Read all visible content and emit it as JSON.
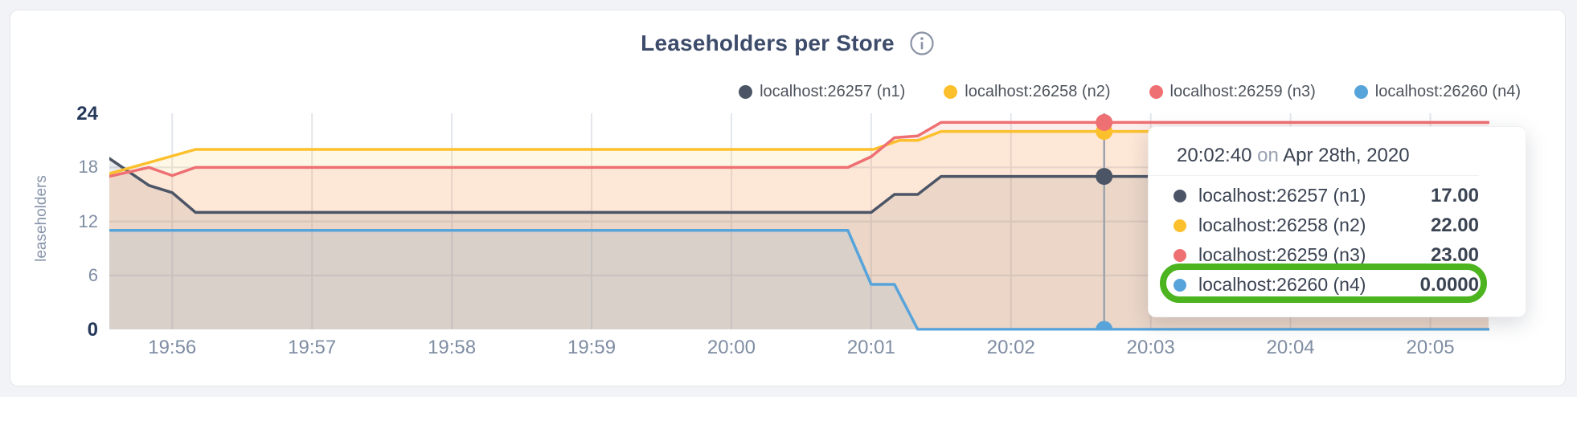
{
  "header": {
    "title": "Leaseholders per Store",
    "info_icon": "circle-i"
  },
  "legend": [
    {
      "label": "localhost:26257 (n1)",
      "color": "#4c5566"
    },
    {
      "label": "localhost:26258 (n2)",
      "color": "#fcc02d"
    },
    {
      "label": "localhost:26259 (n3)",
      "color": "#ef7072"
    },
    {
      "label": "localhost:26260 (n4)",
      "color": "#57a4db"
    }
  ],
  "chart_data": {
    "type": "area",
    "title": "Leaseholders per Store",
    "xlabel": "",
    "ylabel": "leaseholders",
    "ylim": [
      0,
      24
    ],
    "grid": true,
    "legend_position": "top-right",
    "yticks": [
      {
        "v": 0,
        "label": "0",
        "emph": true
      },
      {
        "v": 6,
        "label": "6",
        "emph": false
      },
      {
        "v": 12,
        "label": "12",
        "emph": false
      },
      {
        "v": 18,
        "label": "18",
        "emph": false
      },
      {
        "v": 24,
        "label": "24",
        "emph": true
      }
    ],
    "xticks": [
      {
        "t": -240,
        "label": "19:56"
      },
      {
        "t": -180,
        "label": "19:57"
      },
      {
        "t": -120,
        "label": "19:58"
      },
      {
        "t": -60,
        "label": "19:59"
      },
      {
        "t": 0,
        "label": "20:00"
      },
      {
        "t": 60,
        "label": "20:01"
      },
      {
        "t": 120,
        "label": "20:02"
      },
      {
        "t": 180,
        "label": "20:03"
      },
      {
        "t": 240,
        "label": "20:04"
      },
      {
        "t": 300,
        "label": "20:05"
      }
    ],
    "time_reference": "20:00:00 on Apr 28th, 2020 (t = seconds relative)",
    "x_domain": [
      -267,
      325
    ],
    "series": [
      {
        "name": "localhost:26257 (n1)",
        "color": "#4c5566",
        "points": [
          [
            -267,
            19
          ],
          [
            -250,
            16
          ],
          [
            -240,
            15.2
          ],
          [
            -230,
            13
          ],
          [
            60,
            13
          ],
          [
            70,
            15
          ],
          [
            80,
            15
          ],
          [
            90,
            17
          ],
          [
            325,
            17
          ]
        ]
      },
      {
        "name": "localhost:26258 (n2)",
        "color": "#fcc02d",
        "points": [
          [
            -267,
            17.3
          ],
          [
            -230,
            20
          ],
          [
            61,
            20
          ],
          [
            72,
            21
          ],
          [
            80,
            21
          ],
          [
            90,
            22
          ],
          [
            325,
            22
          ]
        ]
      },
      {
        "name": "localhost:26259 (n3)",
        "color": "#ef7072",
        "points": [
          [
            -267,
            17
          ],
          [
            -250,
            18
          ],
          [
            -240,
            17.1
          ],
          [
            -230,
            18
          ],
          [
            50,
            18
          ],
          [
            60,
            19.2
          ],
          [
            70,
            21.3
          ],
          [
            80,
            21.5
          ],
          [
            90,
            23
          ],
          [
            325,
            23
          ]
        ]
      },
      {
        "name": "localhost:26260 (n4)",
        "color": "#57a4db",
        "points": [
          [
            -267,
            11
          ],
          [
            50,
            11
          ],
          [
            60,
            5
          ],
          [
            70,
            5
          ],
          [
            80,
            0
          ],
          [
            325,
            0
          ]
        ]
      }
    ],
    "hover": {
      "t": 160,
      "time_label": "20:02:40",
      "values": [
        17,
        22,
        23,
        0
      ]
    },
    "fill_opacity": 0.12,
    "grid_color": "#e3e6eb",
    "hover_line_color": "#9ca3ac"
  },
  "tooltip": {
    "time": "20:02:40",
    "conj": "on",
    "date": "Apr 28th, 2020",
    "rows": [
      {
        "label": "localhost:26257 (n1)",
        "value": "17.00",
        "color": "#4c5566",
        "highlighted": false
      },
      {
        "label": "localhost:26258 (n2)",
        "value": "22.00",
        "color": "#fcc02d",
        "highlighted": false
      },
      {
        "label": "localhost:26259 (n3)",
        "value": "23.00",
        "color": "#ef7072",
        "highlighted": false
      },
      {
        "label": "localhost:26260 (n4)",
        "value": "0.0000",
        "color": "#57a4db",
        "highlighted": true
      }
    ],
    "highlight_color": "#4bb41e"
  }
}
